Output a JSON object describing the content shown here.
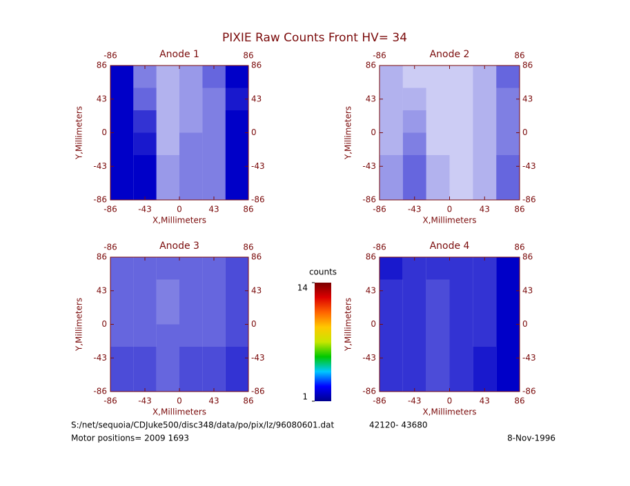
{
  "title": "PIXIE Raw Counts Front HV= 34",
  "chart_data": [
    {
      "type": "heatmap",
      "title": "Anode 1",
      "xlabel": "X,Millimeters",
      "ylabel": "Y,Millimeters",
      "xlim": [
        -86,
        86
      ],
      "ylim": [
        -86,
        86
      ],
      "xticks": [
        -86,
        -43,
        0,
        43,
        86
      ],
      "yticks": [
        -86,
        -43,
        0,
        43,
        86
      ],
      "color": "#0000c8",
      "values": [
        [
          1.0,
          0.5,
          0.3,
          0.4,
          0.6,
          1.0
        ],
        [
          1.0,
          0.6,
          0.3,
          0.4,
          0.5,
          0.9
        ],
        [
          1.1,
          0.8,
          0.3,
          0.4,
          0.5,
          1.0
        ],
        [
          1.2,
          0.9,
          0.3,
          0.5,
          0.5,
          1.0
        ],
        [
          1.2,
          1.0,
          0.4,
          0.5,
          0.5,
          1.0
        ],
        [
          1.3,
          1.0,
          0.4,
          0.5,
          0.5,
          1.0
        ]
      ]
    },
    {
      "type": "heatmap",
      "title": "Anode 2",
      "xlabel": "X,Millimeters",
      "ylabel": "Y,Millimeters",
      "xlim": [
        -86,
        86
      ],
      "ylim": [
        -86,
        86
      ],
      "xticks": [
        -86,
        -43,
        0,
        43,
        86
      ],
      "yticks": [
        -86,
        -43,
        0,
        43,
        86
      ],
      "color": "#0000c8",
      "values": [
        [
          0.3,
          0.2,
          0.2,
          0.2,
          0.3,
          0.6
        ],
        [
          0.3,
          0.3,
          0.2,
          0.2,
          0.3,
          0.5
        ],
        [
          0.3,
          0.4,
          0.2,
          0.2,
          0.3,
          0.5
        ],
        [
          0.3,
          0.5,
          0.2,
          0.2,
          0.3,
          0.5
        ],
        [
          0.4,
          0.6,
          0.3,
          0.2,
          0.3,
          0.6
        ],
        [
          0.4,
          0.6,
          0.3,
          0.2,
          0.3,
          0.6
        ]
      ]
    },
    {
      "type": "heatmap",
      "title": "Anode 3",
      "xlabel": "X,Millimeters",
      "ylabel": "Y,Millimeters",
      "xlim": [
        -86,
        86
      ],
      "ylim": [
        -86,
        86
      ],
      "xticks": [
        -86,
        -43,
        0,
        43,
        86
      ],
      "yticks": [
        -86,
        -43,
        0,
        43,
        86
      ],
      "color": "#0000c8",
      "values": [
        [
          0.6,
          0.6,
          0.6,
          0.6,
          0.6,
          0.7
        ],
        [
          0.6,
          0.6,
          0.5,
          0.6,
          0.6,
          0.7
        ],
        [
          0.6,
          0.6,
          0.5,
          0.6,
          0.6,
          0.7
        ],
        [
          0.6,
          0.6,
          0.6,
          0.6,
          0.6,
          0.7
        ],
        [
          0.7,
          0.7,
          0.6,
          0.7,
          0.7,
          0.8
        ],
        [
          0.7,
          0.7,
          0.6,
          0.7,
          0.7,
          0.8
        ]
      ]
    },
    {
      "type": "heatmap",
      "title": "Anode 4",
      "xlabel": "X,Millimeters",
      "ylabel": "Y,Millimeters",
      "xlim": [
        -86,
        86
      ],
      "ylim": [
        -86,
        86
      ],
      "xticks": [
        -86,
        -43,
        0,
        43,
        86
      ],
      "yticks": [
        -86,
        -43,
        0,
        43,
        86
      ],
      "color": "#0000c8",
      "values": [
        [
          0.9,
          0.8,
          0.8,
          0.8,
          0.8,
          1.0
        ],
        [
          0.8,
          0.8,
          0.7,
          0.8,
          0.8,
          1.0
        ],
        [
          0.8,
          0.8,
          0.7,
          0.8,
          0.8,
          1.0
        ],
        [
          0.8,
          0.8,
          0.7,
          0.8,
          0.8,
          1.0
        ],
        [
          0.8,
          0.8,
          0.7,
          0.8,
          0.9,
          1.0
        ],
        [
          0.8,
          0.8,
          0.7,
          0.8,
          0.9,
          1.0
        ]
      ]
    }
  ],
  "colorbar": {
    "label": "counts",
    "ticks": [
      1,
      14
    ],
    "colors": [
      "#00008c",
      "#0000ff",
      "#00c8ff",
      "#00c800",
      "#c8e600",
      "#ffc800",
      "#ff6400",
      "#dc0000",
      "#7a0000"
    ]
  },
  "footer": {
    "file": "S:/net/sequoia/CDJuke500/disc348/data/po/pix/lz/96080601.dat",
    "range": "42120- 43680",
    "motor": "Motor positions= 2009 1693",
    "date": "8-Nov-1996"
  }
}
